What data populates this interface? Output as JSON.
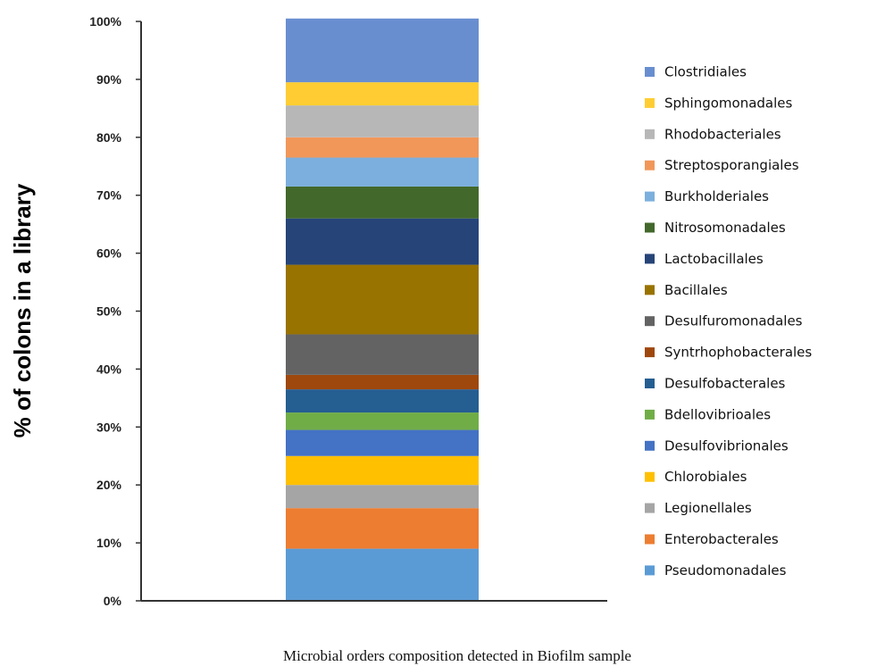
{
  "chart_data": {
    "type": "bar",
    "stacked": true,
    "categories": [
      "Biofilm sample"
    ],
    "xlabel": "Microbial orders composition detected in Biofilm sample",
    "ylabel": "% of colons in a library",
    "ylim": [
      0,
      100
    ],
    "y_ticks": [
      "0%",
      "10%",
      "20%",
      "30%",
      "40%",
      "50%",
      "60%",
      "70%",
      "80%",
      "90%",
      "100%"
    ],
    "legend_position": "right",
    "grid": false,
    "series": [
      {
        "name": "Pseudomonadales",
        "values": [
          9
        ],
        "color": "#5b9bd5"
      },
      {
        "name": "Enterobacterales",
        "values": [
          7
        ],
        "color": "#ed7d31"
      },
      {
        "name": "Legionellales",
        "values": [
          4
        ],
        "color": "#a5a5a5"
      },
      {
        "name": "Chlorobiales",
        "values": [
          5
        ],
        "color": "#ffc000"
      },
      {
        "name": "Desulfovibrionales",
        "values": [
          4.5
        ],
        "color": "#4472c4"
      },
      {
        "name": "Bdellovibrioales",
        "values": [
          3
        ],
        "color": "#70ad47"
      },
      {
        "name": "Desulfobacterales",
        "values": [
          4
        ],
        "color": "#255e91"
      },
      {
        "name": "Syntrhophobacterales",
        "values": [
          2.5
        ],
        "color": "#9e480e"
      },
      {
        "name": "Desulfuromonadales",
        "values": [
          7
        ],
        "color": "#636363"
      },
      {
        "name": "Bacillales",
        "values": [
          12
        ],
        "color": "#997300"
      },
      {
        "name": "Lactobacillales",
        "values": [
          8
        ],
        "color": "#264478"
      },
      {
        "name": "Nitrosomonadales",
        "values": [
          5.5
        ],
        "color": "#43682b"
      },
      {
        "name": "Burkholderiales",
        "values": [
          5
        ],
        "color": "#7cafdd"
      },
      {
        "name": "Streptosporangiales",
        "values": [
          3.5
        ],
        "color": "#f1975a"
      },
      {
        "name": "Rhodobacteriales",
        "values": [
          5.5
        ],
        "color": "#b7b7b7"
      },
      {
        "name": "Sphingomonadales",
        "values": [
          4
        ],
        "color": "#ffcd33"
      },
      {
        "name": "Clostridiales",
        "values": [
          11
        ],
        "color": "#698ed0"
      }
    ]
  }
}
